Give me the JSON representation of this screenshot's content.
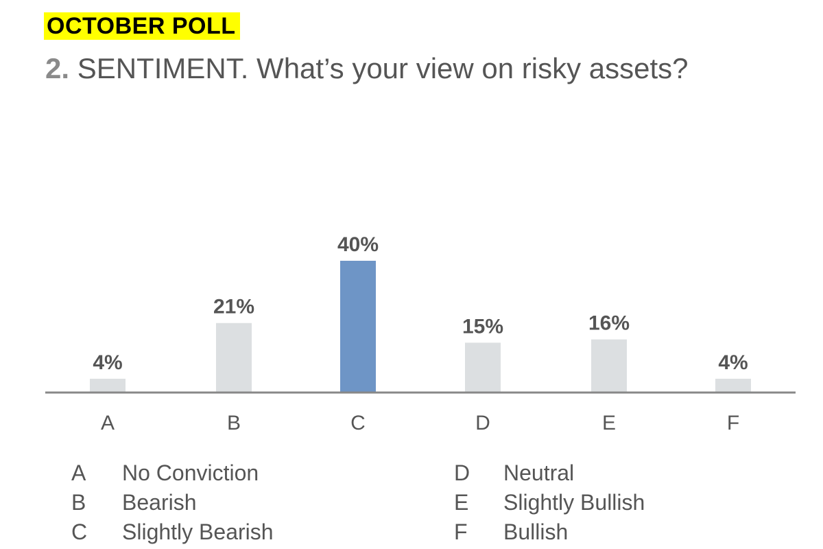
{
  "header": {
    "poll_tag": "OCTOBER POLL",
    "question_number": "2.",
    "question_text": "SENTIMENT. What’s your view on risky assets?"
  },
  "chart_data": {
    "type": "bar",
    "categories": [
      "A",
      "B",
      "C",
      "D",
      "E",
      "F"
    ],
    "values": [
      4,
      21,
      40,
      15,
      16,
      4
    ],
    "value_labels": [
      "4%",
      "21%",
      "40%",
      "15%",
      "16%",
      "4%"
    ],
    "highlight_category": "C",
    "colors": {
      "default": "#dcdfe1",
      "highlight": "#6e95c6",
      "axis": "#888888"
    },
    "legend": [
      {
        "letter": "A",
        "label": "No Conviction"
      },
      {
        "letter": "B",
        "label": "Bearish"
      },
      {
        "letter": "C",
        "label": "Slightly Bearish"
      },
      {
        "letter": "D",
        "label": "Neutral"
      },
      {
        "letter": "E",
        "label": "Slightly Bullish"
      },
      {
        "letter": "F",
        "label": "Bullish"
      }
    ],
    "ylim": [
      0,
      40
    ],
    "grid": false
  }
}
